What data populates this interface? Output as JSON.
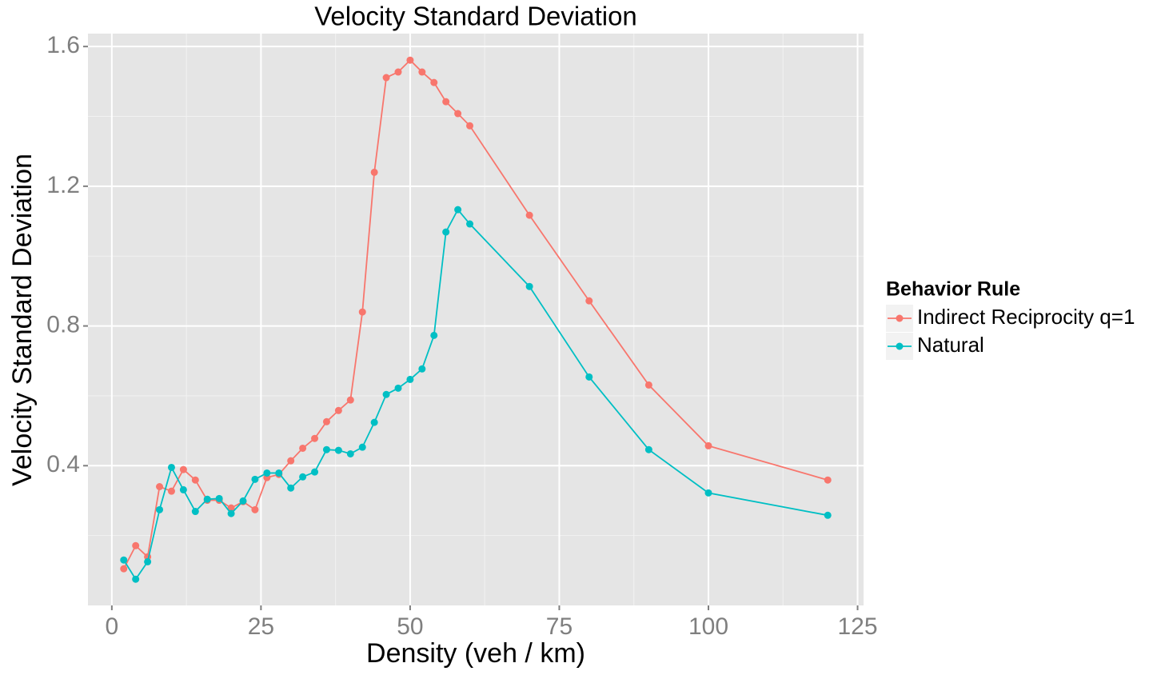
{
  "chart_data": {
    "type": "line",
    "title": "Velocity Standard Deviation",
    "x_label": "Density (veh / km)",
    "y_label": "Velocity Standard Deviation",
    "x": [
      2,
      4,
      6,
      8,
      10,
      12,
      14,
      16,
      18,
      20,
      22,
      24,
      26,
      28,
      30,
      32,
      34,
      36,
      38,
      40,
      42,
      44,
      46,
      48,
      50,
      52,
      54,
      56,
      58,
      60,
      70,
      80,
      90,
      100,
      120
    ],
    "series": [
      {
        "name": "Indirect Reciprocity q=1",
        "color": "#f8766d",
        "values": [
          0.105,
          0.171,
          0.139,
          0.34,
          0.327,
          0.389,
          0.359,
          0.301,
          0.301,
          0.279,
          0.297,
          0.274,
          0.366,
          0.375,
          0.414,
          0.45,
          0.478,
          0.526,
          0.558,
          0.588,
          0.84,
          1.24,
          1.511,
          1.527,
          1.561,
          1.527,
          1.497,
          1.442,
          1.408,
          1.373,
          1.117,
          0.872,
          0.631,
          0.457,
          0.359
        ]
      },
      {
        "name": "Natural",
        "color": "#00bfc4",
        "values": [
          0.13,
          0.075,
          0.125,
          0.274,
          0.395,
          0.331,
          0.269,
          0.304,
          0.306,
          0.263,
          0.299,
          0.361,
          0.379,
          0.379,
          0.336,
          0.368,
          0.382,
          0.446,
          0.444,
          0.434,
          0.453,
          0.524,
          0.604,
          0.622,
          0.647,
          0.677,
          0.773,
          1.069,
          1.133,
          1.092,
          0.913,
          0.654,
          0.446,
          0.322,
          0.258
        ]
      }
    ],
    "legend_title": "Behavior Rule",
    "legend_position": "right",
    "xlim": [
      -4,
      126
    ],
    "xticks": [
      0,
      25,
      50,
      75,
      100,
      125
    ],
    "ylim": [
      0,
      1.637
    ],
    "yticks": [
      {
        "value": 0.4,
        "label": "0.4"
      },
      {
        "value": 0.8,
        "label": "0.8"
      },
      {
        "value": 1.2,
        "label": "1.2"
      },
      {
        "value": 1.6,
        "label": "1.6"
      }
    ],
    "x_minor_grid": [
      12.5,
      37.5,
      62.5,
      87.5,
      112.5
    ],
    "y_minor_grid": [
      0.2,
      0.6,
      1.0,
      1.4
    ],
    "grid": true
  }
}
